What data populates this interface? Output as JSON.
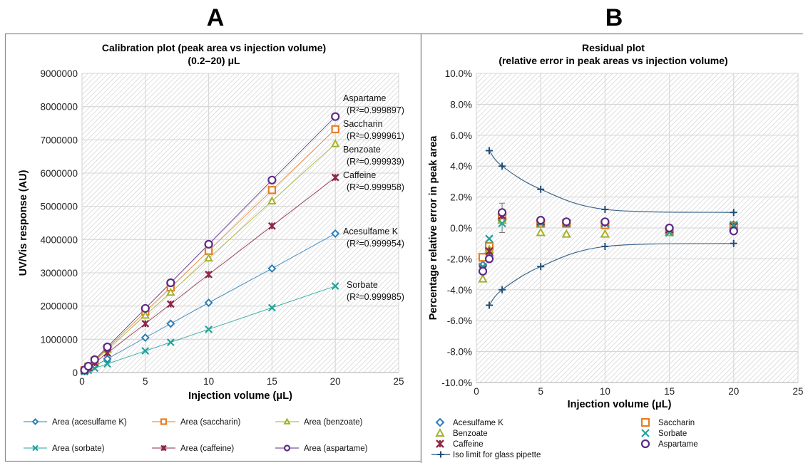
{
  "panels": {
    "a_letter": "A",
    "b_letter": "B"
  },
  "colors": {
    "acesulfame": "#2a7fb8",
    "saccharin": "#e67e22",
    "benzoate": "#a5b12a",
    "sorbate": "#20a39a",
    "caffeine": "#8e2848",
    "aspartame": "#5b2a86",
    "iso": "#1f4e79"
  },
  "chart_data": [
    {
      "type": "line",
      "title": "Calibration plot (peak area vs injection volume)",
      "subtitle": "(0.2–20) μL",
      "xlabel": "Injection volume (μL)",
      "ylabel": "UV/Vis response (AU)",
      "xlim": [
        0,
        25
      ],
      "ylim": [
        0,
        9000000
      ],
      "xticks": [
        "0",
        "5",
        "10",
        "15",
        "20",
        "25"
      ],
      "yticks": [
        "0",
        "1000000",
        "2000000",
        "3000000",
        "4000000",
        "5000000",
        "6000000",
        "7000000",
        "8000000",
        "9000000"
      ],
      "grid": true,
      "legend_position": "bottom",
      "x": [
        0.2,
        0.5,
        1,
        2,
        5,
        7,
        10,
        15,
        20
      ],
      "series": [
        {
          "key": "acesulfame",
          "name": "Area (acesulfame K)",
          "marker": "diamond",
          "values": [
            40000,
            100000,
            200000,
            410000,
            1050000,
            1470000,
            2100000,
            3130000,
            4180000
          ]
        },
        {
          "key": "saccharin",
          "name": "Area (saccharin)",
          "marker": "square",
          "values": [
            70000,
            180000,
            360000,
            730000,
            1830000,
            2560000,
            3660000,
            5490000,
            7320000
          ]
        },
        {
          "key": "benzoate",
          "name": "Area (benzoate)",
          "marker": "triangle",
          "values": [
            65000,
            170000,
            340000,
            690000,
            1720000,
            2410000,
            3440000,
            5160000,
            6880000
          ]
        },
        {
          "key": "sorbate",
          "name": "Area (sorbate)",
          "marker": "x",
          "values": [
            25000,
            65000,
            130000,
            260000,
            650000,
            910000,
            1300000,
            1950000,
            2600000
          ]
        },
        {
          "key": "caffeine",
          "name": "Area (caffeine)",
          "marker": "star",
          "values": [
            58000,
            147000,
            295000,
            590000,
            1470000,
            2060000,
            2950000,
            4410000,
            5870000
          ]
        },
        {
          "key": "aspartame",
          "name": "Area (aspartame)",
          "marker": "circle",
          "values": [
            75000,
            190000,
            385000,
            770000,
            1930000,
            2700000,
            3860000,
            5790000,
            7700000
          ]
        }
      ],
      "annotations": [
        {
          "key": "aspartame",
          "name": "Aspartame",
          "r2": "(R²=0.999897)"
        },
        {
          "key": "saccharin",
          "name": "Saccharin",
          "r2": "(R²=0.999961)"
        },
        {
          "key": "benzoate",
          "name": "Benzoate",
          "r2": "(R²=0.999939)"
        },
        {
          "key": "caffeine",
          "name": "Caffeine",
          "r2": "(R²=0.999958)"
        },
        {
          "key": "acesulfame",
          "name": "Acesulfame K",
          "r2": "(R²=0.999954)"
        },
        {
          "key": "sorbate",
          "name": "Sorbate",
          "r2": "(R²=0.999985)"
        }
      ]
    },
    {
      "type": "scatter",
      "title": "Residual plot",
      "subtitle": "(relative error in peak areas vs injection volume)",
      "xlabel": "Injection volume (μL)",
      "ylabel": "Percentage relative error in peak area",
      "xlim": [
        0,
        25
      ],
      "ylim": [
        -10,
        10
      ],
      "xticks": [
        "0",
        "5",
        "10",
        "15",
        "20",
        "25"
      ],
      "yticks": [
        "-10.0%",
        "-8.0%",
        "-6.0%",
        "-4.0%",
        "-2.0%",
        "0.0%",
        "2.0%",
        "4.0%",
        "6.0%",
        "8.0%",
        "10.0%"
      ],
      "grid": true,
      "legend_position": "bottom",
      "x": [
        0.5,
        1,
        2,
        5,
        7,
        10,
        15,
        20
      ],
      "series": [
        {
          "key": "acesulfame",
          "name": "Acesulfame K",
          "marker": "diamond",
          "values": [
            -2.4,
            -1.8,
            0.6,
            0.3,
            0.3,
            0.3,
            -0.2,
            0.2
          ]
        },
        {
          "key": "saccharin",
          "name": "Saccharin",
          "marker": "square",
          "values": [
            -1.9,
            -1.2,
            0.7,
            0.3,
            0.3,
            0.2,
            -0.2,
            0.1
          ]
        },
        {
          "key": "benzoate",
          "name": "Benzoate",
          "marker": "triangle",
          "values": [
            -3.3,
            -1.4,
            0.5,
            -0.3,
            -0.4,
            -0.4,
            -0.3,
            0.0
          ]
        },
        {
          "key": "caffeine",
          "name": "Caffeine",
          "marker": "star",
          "values": [
            -2.7,
            -1.5,
            0.8,
            0.4,
            0.3,
            0.3,
            -0.1,
            0.1
          ]
        },
        {
          "key": "sorbate",
          "name": "Sorbate",
          "marker": "x",
          "values": [
            -2.5,
            -0.7,
            0.3,
            0.3,
            0.3,
            0.3,
            -0.3,
            0.2
          ]
        },
        {
          "key": "aspartame",
          "name": "Aspartame",
          "marker": "circle",
          "values": [
            -2.8,
            -2.0,
            1.0,
            0.5,
            0.4,
            0.4,
            0.0,
            -0.2
          ]
        }
      ],
      "iso_limit": {
        "key": "iso",
        "name": "Iso limit for glass pipette",
        "x": [
          1,
          2,
          5,
          10,
          20
        ],
        "upper": [
          5.0,
          4.0,
          2.5,
          1.2,
          1.0
        ],
        "lower": [
          -5.0,
          -4.0,
          -2.5,
          -1.2,
          -1.0
        ]
      },
      "error_bar": {
        "x": 2,
        "low": -0.3,
        "high": 1.6
      }
    }
  ]
}
